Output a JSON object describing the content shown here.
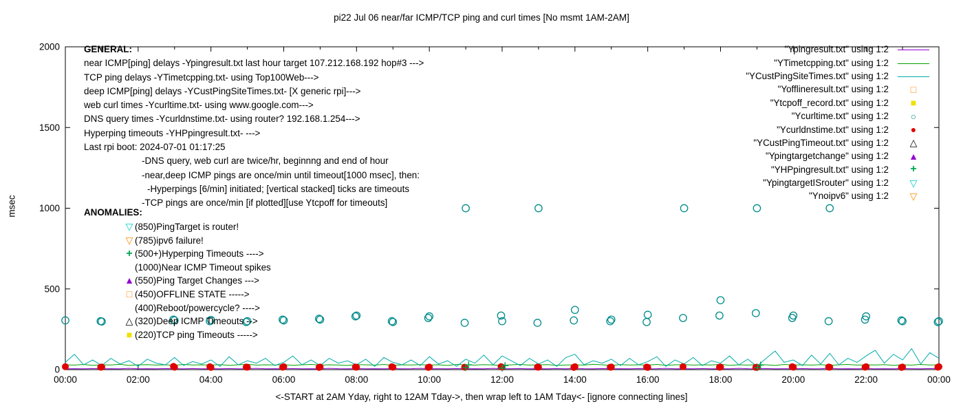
{
  "chart_data": {
    "type": "line",
    "title": "pi22 Jul 06  near/far ICMP/TCP ping and curl times [No msmt 1AM-2AM]",
    "xlabel": "<-START at 2AM Yday, right to 12AM Tday->, then wrap left to 1AM Tday<- [ignore connecting lines]",
    "ylabel": "msec",
    "xlim_hours": [
      0,
      24
    ],
    "ylim": [
      0,
      2000
    ],
    "yticks": [
      0,
      500,
      1000,
      1500,
      2000
    ],
    "xticks": [
      {
        "hour": 0,
        "label": "00:00"
      },
      {
        "hour": 2,
        "label": "02:00"
      },
      {
        "hour": 4,
        "label": "04:00"
      },
      {
        "hour": 6,
        "label": "06:00"
      },
      {
        "hour": 8,
        "label": "08:00"
      },
      {
        "hour": 10,
        "label": "10:00"
      },
      {
        "hour": 12,
        "label": "12:00"
      },
      {
        "hour": 14,
        "label": "14:00"
      },
      {
        "hour": 16,
        "label": "16:00"
      },
      {
        "hour": 18,
        "label": "18:00"
      },
      {
        "hour": 20,
        "label": "20:00"
      },
      {
        "hour": 22,
        "label": "22:00"
      },
      {
        "hour": 24,
        "label": "00:00"
      }
    ],
    "grid": false,
    "legend_position": "top-right",
    "series": [
      {
        "name": "Ypingresult.txt",
        "style": "line",
        "color": "#9400d3",
        "x_start": 0,
        "x_step": 0.25,
        "y": [
          5,
          6,
          5,
          7,
          5,
          6,
          5,
          8,
          5,
          6,
          5,
          7,
          6,
          5,
          7,
          5,
          6,
          5,
          7,
          5,
          6,
          8,
          5,
          6,
          5,
          7,
          5,
          6,
          5,
          8,
          6,
          5,
          7,
          5,
          6,
          5,
          7,
          5,
          6,
          8,
          5,
          6,
          5,
          7,
          5,
          6,
          5,
          8,
          5,
          6,
          7,
          5,
          6,
          5,
          7,
          5,
          8,
          6,
          5,
          7,
          5,
          6,
          5,
          7,
          5,
          6,
          8,
          5,
          6,
          5,
          7,
          5,
          6,
          5,
          8,
          6,
          5,
          7,
          5,
          6,
          5,
          7,
          5,
          6,
          8,
          5,
          6,
          5,
          7,
          5,
          6,
          5,
          7,
          6,
          5,
          7,
          5
        ]
      },
      {
        "name": "YTimetcpping.txt",
        "style": "line",
        "color": "#00a000",
        "x_start": 0,
        "x_step": 0.25,
        "y": [
          30,
          28,
          32,
          27,
          30,
          29,
          33,
          26,
          30,
          31,
          28,
          30,
          27,
          32,
          29,
          30,
          28,
          31,
          27,
          30,
          33,
          28,
          30,
          29,
          31,
          27,
          30,
          32,
          28,
          30,
          29,
          26,
          31,
          30,
          28,
          32,
          27,
          30,
          29,
          31,
          28,
          30,
          26,
          32,
          30,
          28,
          31,
          29,
          27,
          30,
          32,
          28,
          30,
          31,
          27,
          29,
          30,
          28,
          33,
          30,
          26,
          31,
          29,
          30,
          28,
          32,
          27,
          30,
          31,
          28,
          30,
          29,
          33,
          27,
          30,
          28,
          31,
          30,
          26,
          32,
          29,
          30,
          28,
          31,
          27,
          30,
          32,
          28,
          30,
          29,
          31,
          27,
          30,
          28,
          32,
          29,
          30
        ]
      },
      {
        "name": "YCustPingSiteTimes.txt",
        "style": "line",
        "color": "#00aaaa",
        "x_start": 0,
        "x_step": 0.25,
        "y": [
          45,
          95,
          30,
          60,
          25,
          70,
          35,
          55,
          20,
          65,
          40,
          30,
          75,
          25,
          50,
          35,
          60,
          20,
          80,
          30,
          55,
          40,
          70,
          25,
          45,
          85,
          30,
          60,
          25,
          70,
          40,
          55,
          30,
          65,
          20,
          75,
          45,
          30,
          60,
          25,
          80,
          35,
          55,
          20,
          65,
          40,
          90,
          30,
          85,
          55,
          25,
          70,
          35,
          60,
          20,
          75,
          95,
          30,
          55,
          40,
          65,
          25,
          70,
          30,
          50,
          80,
          20,
          60,
          35,
          75,
          25,
          55,
          40,
          85,
          30,
          65,
          20,
          70,
          115,
          45,
          60,
          25,
          90,
          35,
          100,
          30,
          70,
          45,
          85,
          120,
          40,
          95,
          60,
          130,
          35,
          105,
          70
        ]
      },
      {
        "name": "Ycurltime.txt",
        "style": "scatter",
        "marker": "circle-open",
        "color": "#008b8b",
        "points": [
          [
            0,
            305
          ],
          [
            0.97,
            300
          ],
          [
            1,
            298
          ],
          [
            2.97,
            310
          ],
          [
            3,
            305
          ],
          [
            3.97,
            300
          ],
          [
            4,
            308
          ],
          [
            4.97,
            295
          ],
          [
            5,
            300
          ],
          [
            5.97,
            310
          ],
          [
            6,
            305
          ],
          [
            6.97,
            315
          ],
          [
            7,
            310
          ],
          [
            7.97,
            330
          ],
          [
            8,
            335
          ],
          [
            8.97,
            300
          ],
          [
            9,
            295
          ],
          [
            9.97,
            320
          ],
          [
            10,
            330
          ],
          [
            10.97,
            290
          ],
          [
            11,
            1000
          ],
          [
            11.97,
            335
          ],
          [
            12,
            300
          ],
          [
            12.97,
            290
          ],
          [
            13,
            1000
          ],
          [
            13.97,
            305
          ],
          [
            14,
            370
          ],
          [
            14.97,
            300
          ],
          [
            15,
            310
          ],
          [
            15.97,
            295
          ],
          [
            16,
            340
          ],
          [
            16.97,
            320
          ],
          [
            17,
            1000
          ],
          [
            17.97,
            335
          ],
          [
            18,
            430
          ],
          [
            18.97,
            350
          ],
          [
            19,
            1000
          ],
          [
            19.97,
            320
          ],
          [
            20,
            335
          ],
          [
            20.97,
            300
          ],
          [
            21,
            1000
          ],
          [
            21.97,
            310
          ],
          [
            22,
            330
          ],
          [
            22.97,
            305
          ],
          [
            23,
            300
          ],
          [
            23.97,
            295
          ],
          [
            24,
            300
          ]
        ]
      },
      {
        "name": "Ycurldnstime.txt",
        "style": "scatter",
        "marker": "circle-filled",
        "color": "#e00000",
        "points": [
          [
            0,
            18
          ],
          [
            0.97,
            15
          ],
          [
            1,
            16
          ],
          [
            2.97,
            20
          ],
          [
            3,
            15
          ],
          [
            3.97,
            18
          ],
          [
            4,
            14
          ],
          [
            4.97,
            16
          ],
          [
            5,
            15
          ],
          [
            5.97,
            15
          ],
          [
            6,
            18
          ],
          [
            6.97,
            14
          ],
          [
            7,
            16
          ],
          [
            7.97,
            16
          ],
          [
            8,
            15
          ],
          [
            8.97,
            18
          ],
          [
            9,
            15
          ],
          [
            9.97,
            14
          ],
          [
            10,
            16
          ],
          [
            10.97,
            15
          ],
          [
            11.97,
            18
          ],
          [
            12,
            15
          ],
          [
            12.97,
            16
          ],
          [
            13,
            15
          ],
          [
            13.97,
            14
          ],
          [
            14,
            18
          ],
          [
            14.97,
            15
          ],
          [
            15,
            16
          ],
          [
            15.97,
            16
          ],
          [
            16,
            14
          ],
          [
            16.97,
            18
          ],
          [
            17.97,
            15
          ],
          [
            18,
            16
          ],
          [
            18.97,
            14
          ],
          [
            19,
            15
          ],
          [
            19.97,
            18
          ],
          [
            20,
            15
          ],
          [
            20.97,
            16
          ],
          [
            21,
            15
          ],
          [
            21.97,
            15
          ],
          [
            22,
            18
          ],
          [
            22.97,
            14
          ],
          [
            23,
            16
          ],
          [
            23.97,
            15
          ],
          [
            24,
            18
          ]
        ]
      },
      {
        "name": "YHPpingresult.txt",
        "style": "scatter",
        "marker": "plus",
        "color": "#00a550",
        "points": [
          [
            11,
            12
          ],
          [
            11.08,
            30
          ],
          [
            12,
            10
          ],
          [
            12.08,
            25
          ],
          [
            19.02,
            12
          ],
          [
            19.1,
            28
          ]
        ]
      }
    ]
  },
  "legend": {
    "items": [
      {
        "label": "\"Ypingresult.txt\" using 1:2",
        "style": "line",
        "marker": "line",
        "color": "#9400d3"
      },
      {
        "label": "\"YTimetcpping.txt\" using 1:2",
        "style": "line",
        "marker": "line",
        "color": "#00a000"
      },
      {
        "label": "\"YCustPingSiteTimes.txt\" using 1:2",
        "style": "line",
        "marker": "line",
        "color": "#00aaaa"
      },
      {
        "label": "\"Yofflineresult.txt\" using 1:2",
        "style": "marker",
        "marker": "square-open",
        "color": "#ff8c00"
      },
      {
        "label": "\"Ytcpoff_record.txt\" using 1:2",
        "style": "marker",
        "marker": "square-filled",
        "color": "#f0e000"
      },
      {
        "label": "\"Ycurltime.txt\" using 1:2",
        "style": "marker",
        "marker": "circle-open",
        "color": "#008b8b"
      },
      {
        "label": "\"Ycurldnstime.txt\" using 1:2",
        "style": "marker",
        "marker": "circle-filled",
        "color": "#e00000"
      },
      {
        "label": "\"YCustPingTimeout.txt\" using 1:2",
        "style": "marker",
        "marker": "triangle-up-open",
        "color": "#000000"
      },
      {
        "label": "\"Ypingtargetchange\" using 1:2",
        "style": "marker",
        "marker": "triangle-up-filled",
        "color": "#9400d3"
      },
      {
        "label": "\"YHPpingresult.txt\" using 1:2",
        "style": "marker",
        "marker": "plus",
        "color": "#00a550"
      },
      {
        "label": "\"YpingtargetISrouter\" using 1:2",
        "style": "marker",
        "marker": "triangle-down-open",
        "color": "#00cccc"
      },
      {
        "label": "\"Ynoipv6\" using 1:2",
        "style": "marker",
        "marker": "triangle-down-open",
        "color": "#ff8c00"
      }
    ]
  },
  "general": {
    "header": "GENERAL:",
    "lines": [
      {
        "text": "near ICMP[ping] delays -Ypingresult.txt last hour target 107.212.168.192 hop#3 --->",
        "indent": 0
      },
      {
        "text": "TCP ping delays -YTimetcpping.txt- using Top100Web--->",
        "indent": 0
      },
      {
        "text": "deep ICMP[ping] delays -YCustPingSiteTimes.txt- [X generic rpi]--->",
        "indent": 0
      },
      {
        "text": "web curl times -Ycurltime.txt- using www.google.com--->",
        "indent": 0
      },
      {
        "text": "DNS query times -Ycurldnstime.txt- using router? 192.168.1.254--->",
        "indent": 0
      },
      {
        "text": "Hyperping timeouts -YHPpingresult.txt- --->",
        "indent": 0
      },
      {
        "text": "Last rpi boot: 2024-07-01 01:17:25",
        "indent": 0
      },
      {
        "text": "-DNS query, web curl are twice/hr, beginnng and end of hour",
        "indent": 1
      },
      {
        "text": "-near,deep ICMP pings are once/min until timeout[1000 msec], then:",
        "indent": 1
      },
      {
        "text": "-Hyperpings [6/min] initiated; [vertical stacked] ticks are timeouts",
        "indent": 2
      },
      {
        "text": "-TCP pings are once/min [if plotted][use Ytcpoff for timeouts]",
        "indent": 1
      }
    ]
  },
  "anomalies": {
    "header": "ANOMALIES:",
    "items": [
      {
        "marker": "triangle-down-open",
        "color": "#00cccc",
        "text": "(850)PingTarget is router!"
      },
      {
        "marker": "triangle-down-open",
        "color": "#ff8c00",
        "text": "(785)ipv6 failure!"
      },
      {
        "marker": "plus",
        "color": "#00a550",
        "text": "(500+)Hyperping Timeouts ---->"
      },
      {
        "marker": "none",
        "color": "#000000",
        "text": "(1000)Near ICMP Timeout spikes"
      },
      {
        "marker": "triangle-up-filled",
        "color": "#9400d3",
        "text": "(550)Ping Target Changes --->"
      },
      {
        "marker": "square-open",
        "color": "#ff8c00",
        "text": "(450)OFFLINE STATE ----->"
      },
      {
        "marker": "none",
        "color": "#000000",
        "text": "(400)Reboot/powercycle? ---->"
      },
      {
        "marker": "triangle-up-open",
        "color": "#000000",
        "text": "(320)Deep ICMP Timeouts -->"
      },
      {
        "marker": "square-filled",
        "color": "#f0e000",
        "text": "(220)TCP ping Timeouts ----->"
      }
    ]
  }
}
